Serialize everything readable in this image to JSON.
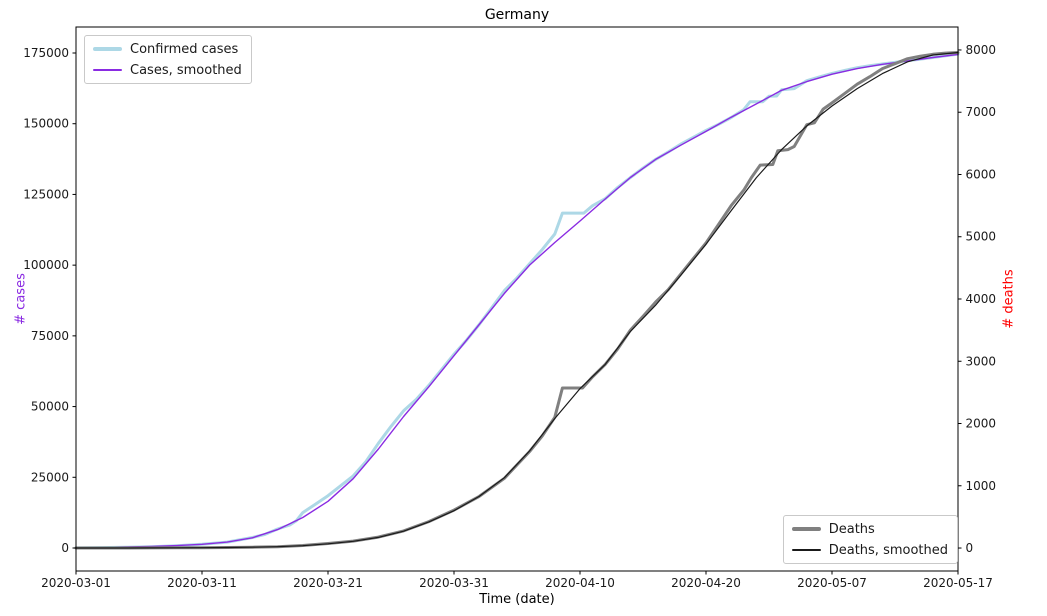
{
  "chart_data": {
    "type": "line",
    "title": "Germany",
    "xlabel": "Time (date)",
    "ylabel_left": "# cases",
    "ylabel_right": "# deaths",
    "colors": {
      "confirmed_cases": "#ADD8E6",
      "cases_smoothed": "#8A2BE2",
      "deaths": "#808080",
      "deaths_smoothed": "#1a1a1a",
      "ylabel_left": "#8A2BE2",
      "ylabel_right": "#FF0000",
      "axis_text": "#1a1a1a",
      "spine": "#000000"
    },
    "x_axis": {
      "range": [
        0,
        70
      ],
      "tick_positions": [
        0,
        10,
        20,
        30,
        40,
        50,
        60,
        70
      ],
      "tick_labels": [
        "2020-03-01",
        "2020-03-11",
        "2020-03-21",
        "2020-03-31",
        "2020-04-10",
        "2020-04-20",
        "2020-05-07",
        "2020-05-17"
      ]
    },
    "y_axis_left": {
      "range": [
        -8131,
        184192
      ],
      "ticks": [
        0,
        25000,
        50000,
        75000,
        100000,
        125000,
        150000,
        175000
      ],
      "grid": false
    },
    "y_axis_right": {
      "range": [
        -369,
        8369
      ],
      "ticks": [
        0,
        1000,
        2000,
        3000,
        4000,
        5000,
        6000,
        7000,
        8000
      ],
      "grid": false
    },
    "series": [
      {
        "id": "confirmed-cases",
        "name": "Confirmed cases",
        "axis": "left",
        "color": "#ADD8E6",
        "line_width": 3,
        "points": [
          [
            0,
            50
          ],
          [
            2,
            150
          ],
          [
            4,
            250
          ],
          [
            6,
            450
          ],
          [
            8,
            800
          ],
          [
            10,
            1300
          ],
          [
            12,
            2100
          ],
          [
            14,
            3700
          ],
          [
            15,
            4800
          ],
          [
            16,
            6700
          ],
          [
            17,
            8200
          ],
          [
            17.5,
            9700
          ],
          [
            18,
            12500
          ],
          [
            19,
            15500
          ],
          [
            20,
            18500
          ],
          [
            21,
            22000
          ],
          [
            22,
            25500
          ],
          [
            23,
            30500
          ],
          [
            24,
            37000
          ],
          [
            25,
            43000
          ],
          [
            26,
            48500
          ],
          [
            27,
            52500
          ],
          [
            28,
            57500
          ],
          [
            29,
            63000
          ],
          [
            30,
            68500
          ],
          [
            31,
            73500
          ],
          [
            32,
            79000
          ],
          [
            33,
            85000
          ],
          [
            34,
            91000
          ],
          [
            35,
            95500
          ],
          [
            36,
            100500
          ],
          [
            37,
            105500
          ],
          [
            38,
            111000
          ],
          [
            38.6,
            118400
          ],
          [
            40.3,
            118400
          ],
          [
            41,
            121000
          ],
          [
            42,
            123500
          ],
          [
            43,
            127500
          ],
          [
            44,
            131000
          ],
          [
            45,
            134300
          ],
          [
            46,
            137400
          ],
          [
            47,
            140000
          ],
          [
            48,
            142800
          ],
          [
            49,
            145200
          ],
          [
            50,
            147600
          ],
          [
            51,
            149800
          ],
          [
            52,
            152200
          ],
          [
            53,
            155000
          ],
          [
            53.5,
            157800
          ],
          [
            54.5,
            157800
          ],
          [
            55,
            159700
          ],
          [
            55.6,
            159800
          ],
          [
            56,
            162000
          ],
          [
            57,
            162400
          ],
          [
            58,
            165200
          ],
          [
            59,
            166500
          ],
          [
            60,
            167800
          ],
          [
            61,
            168800
          ],
          [
            62,
            169800
          ],
          [
            63,
            170500
          ],
          [
            64,
            171100
          ],
          [
            65,
            171700
          ],
          [
            66,
            172300
          ],
          [
            67,
            172800
          ],
          [
            68,
            173400
          ],
          [
            69,
            174000
          ],
          [
            70,
            174600
          ]
        ]
      },
      {
        "id": "cases-smoothed",
        "name": "Cases, smoothed",
        "axis": "left",
        "color": "#8A2BE2",
        "line_width": 1.4,
        "points": [
          [
            0,
            100
          ],
          [
            2,
            200
          ],
          [
            4,
            350
          ],
          [
            6,
            550
          ],
          [
            8,
            850
          ],
          [
            10,
            1300
          ],
          [
            12,
            2100
          ],
          [
            14,
            3600
          ],
          [
            16,
            6500
          ],
          [
            18,
            10800
          ],
          [
            20,
            16500
          ],
          [
            22,
            24500
          ],
          [
            24,
            35000
          ],
          [
            26,
            46500
          ],
          [
            28,
            57000
          ],
          [
            30,
            68000
          ],
          [
            32,
            79000
          ],
          [
            34,
            90000
          ],
          [
            36,
            100000
          ],
          [
            38,
            108000
          ],
          [
            40,
            115600
          ],
          [
            42,
            123400
          ],
          [
            44,
            131000
          ],
          [
            46,
            137400
          ],
          [
            48,
            142400
          ],
          [
            50,
            147300
          ],
          [
            52,
            152300
          ],
          [
            54,
            157000
          ],
          [
            56,
            161800
          ],
          [
            58,
            164900
          ],
          [
            60,
            167500
          ],
          [
            62,
            169500
          ],
          [
            64,
            171000
          ],
          [
            66,
            172200
          ],
          [
            68,
            173400
          ],
          [
            70,
            174500
          ]
        ]
      },
      {
        "id": "deaths",
        "name": "Deaths",
        "axis": "right",
        "color": "#808080",
        "line_width": 3,
        "points": [
          [
            0,
            0
          ],
          [
            2,
            0
          ],
          [
            4,
            1
          ],
          [
            6,
            2
          ],
          [
            8,
            4
          ],
          [
            10,
            6
          ],
          [
            12,
            9
          ],
          [
            14,
            14
          ],
          [
            16,
            22
          ],
          [
            18,
            40
          ],
          [
            20,
            72
          ],
          [
            22,
            112
          ],
          [
            24,
            175
          ],
          [
            26,
            275
          ],
          [
            28,
            425
          ],
          [
            30,
            610
          ],
          [
            32,
            830
          ],
          [
            34,
            1120
          ],
          [
            36,
            1550
          ],
          [
            37,
            1800
          ],
          [
            38,
            2100
          ],
          [
            38.6,
            2570
          ],
          [
            40.2,
            2570
          ],
          [
            41,
            2750
          ],
          [
            42,
            2950
          ],
          [
            43,
            3200
          ],
          [
            44,
            3500
          ],
          [
            45,
            3720
          ],
          [
            46,
            3950
          ],
          [
            47,
            4150
          ],
          [
            48,
            4400
          ],
          [
            49,
            4650
          ],
          [
            50,
            4900
          ],
          [
            51,
            5200
          ],
          [
            52,
            5500
          ],
          [
            53,
            5750
          ],
          [
            53.6,
            5950
          ],
          [
            54.3,
            6150
          ],
          [
            55.3,
            6160
          ],
          [
            55.7,
            6380
          ],
          [
            56.5,
            6400
          ],
          [
            57,
            6450
          ],
          [
            58,
            6800
          ],
          [
            58.6,
            6830
          ],
          [
            59.3,
            7050
          ],
          [
            60,
            7150
          ],
          [
            61,
            7300
          ],
          [
            62,
            7450
          ],
          [
            63,
            7570
          ],
          [
            64,
            7700
          ],
          [
            65,
            7780
          ],
          [
            66,
            7860
          ],
          [
            67,
            7900
          ],
          [
            68,
            7930
          ],
          [
            69,
            7950
          ],
          [
            70,
            7960
          ]
        ]
      },
      {
        "id": "deaths-smoothed",
        "name": "Deaths, smoothed",
        "axis": "right",
        "color": "#1a1a1a",
        "line_width": 1.2,
        "points": [
          [
            0,
            0
          ],
          [
            2,
            0
          ],
          [
            4,
            1
          ],
          [
            6,
            2
          ],
          [
            8,
            3
          ],
          [
            10,
            5
          ],
          [
            12,
            8
          ],
          [
            14,
            13
          ],
          [
            16,
            21
          ],
          [
            18,
            38
          ],
          [
            20,
            68
          ],
          [
            22,
            108
          ],
          [
            24,
            170
          ],
          [
            26,
            270
          ],
          [
            28,
            420
          ],
          [
            30,
            600
          ],
          [
            32,
            830
          ],
          [
            34,
            1130
          ],
          [
            36,
            1560
          ],
          [
            38,
            2080
          ],
          [
            40,
            2560
          ],
          [
            42,
            2950
          ],
          [
            44,
            3480
          ],
          [
            46,
            3900
          ],
          [
            48,
            4380
          ],
          [
            50,
            4880
          ],
          [
            52,
            5420
          ],
          [
            54,
            5950
          ],
          [
            56,
            6400
          ],
          [
            58,
            6780
          ],
          [
            60,
            7100
          ],
          [
            62,
            7380
          ],
          [
            64,
            7620
          ],
          [
            66,
            7810
          ],
          [
            68,
            7920
          ],
          [
            70,
            7960
          ]
        ]
      }
    ],
    "legends": [
      {
        "position": "top-left",
        "entries": [
          {
            "label": "Confirmed cases",
            "color": "#ADD8E6",
            "sample_height": 3.5
          },
          {
            "label": "Cases, smoothed",
            "color": "#8A2BE2",
            "sample_height": 1.5
          }
        ]
      },
      {
        "position": "bottom-right",
        "entries": [
          {
            "label": "Deaths",
            "color": "#808080",
            "sample_height": 3.5
          },
          {
            "label": "Deaths, smoothed",
            "color": "#1a1a1a",
            "sample_height": 1.5
          }
        ]
      }
    ]
  }
}
